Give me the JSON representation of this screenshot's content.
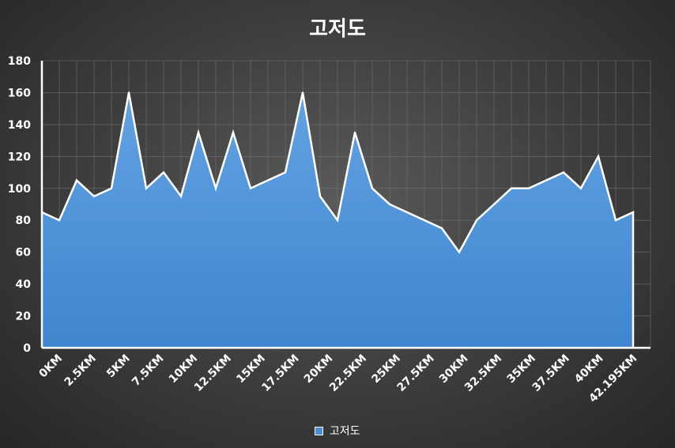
{
  "chart_data": {
    "type": "area",
    "title": "고저도",
    "xlabel": "",
    "ylabel": "",
    "ylim": [
      0,
      180
    ],
    "y_ticks": [
      0,
      20,
      40,
      60,
      80,
      100,
      120,
      140,
      160,
      180
    ],
    "x_tick_labels": [
      "0KM",
      "2.5KM",
      "5KM",
      "7.5KM",
      "10KM",
      "12.5KM",
      "15KM",
      "17.5KM",
      "20KM",
      "22.5KM",
      "25KM",
      "27.5KM",
      "30KM",
      "32.5KM",
      "35KM",
      "37.5KM",
      "40KM",
      "42.195KM"
    ],
    "grid": true,
    "legend_position": "bottom",
    "colors": {
      "fill_top": "#62a2e2",
      "fill_bottom": "#3f86cf",
      "line": "#ffffff",
      "grid": "#707070"
    },
    "series": [
      {
        "name": "고저도",
        "values": [
          85,
          80,
          105,
          95,
          100,
          160,
          100,
          110,
          95,
          135,
          100,
          135,
          100,
          105,
          110,
          160,
          95,
          80,
          135,
          100,
          90,
          85,
          80,
          75,
          60,
          80,
          90,
          100,
          100,
          105,
          110,
          100,
          120,
          80,
          85
        ]
      }
    ]
  }
}
